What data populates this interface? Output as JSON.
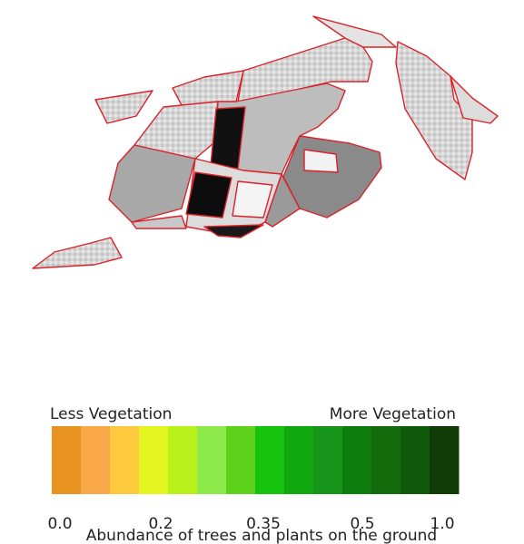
{
  "legend": {
    "left_label": "Less Vegetation",
    "right_label": "More Vegetation",
    "colors": [
      "#e8921f",
      "#f9a94a",
      "#fdc93f",
      "#e4f421",
      "#b8f21a",
      "#8de84a",
      "#5ed21a",
      "#16c40e",
      "#10a80e",
      "#17941a",
      "#0d7d0d",
      "#136b0b",
      "#0e5a0a",
      "#103a06"
    ],
    "ticks": [
      "0.0",
      "0.2",
      "0.35",
      "0.5",
      "1.0"
    ],
    "caption": "Abundance of trees and plants on the ground"
  }
}
